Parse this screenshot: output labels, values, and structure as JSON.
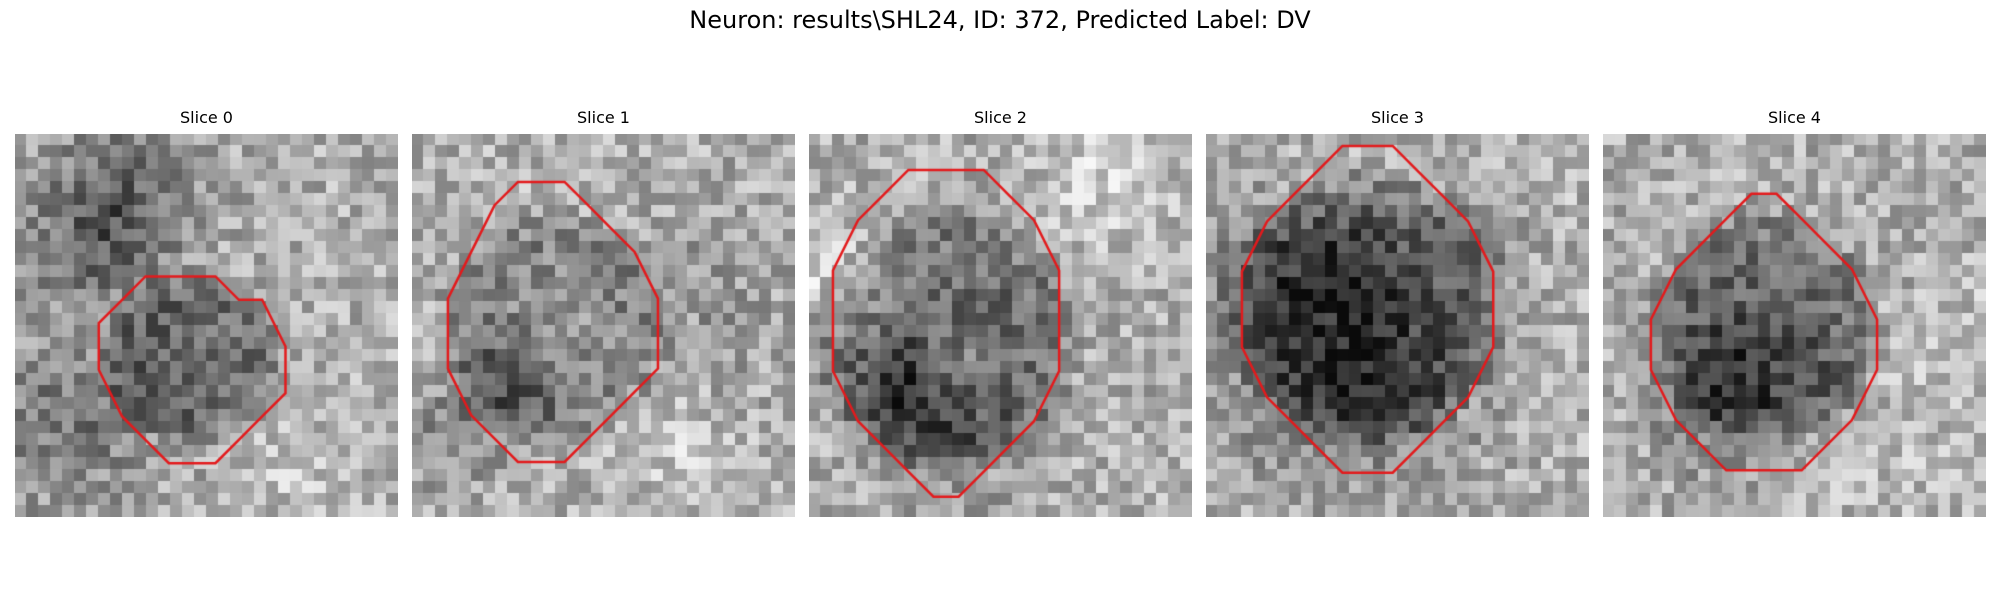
{
  "figure": {
    "title": "Neuron: results\\SHL24, ID: 372, Predicted Label: DV",
    "contour_color": "#e31a1c",
    "colormap": "gray",
    "panels": [
      {
        "title": "Slice 0",
        "seed": 11,
        "contour": [
          [
            4,
            2
          ],
          [
            5,
            2
          ],
          [
            6,
            3
          ],
          [
            7,
            3
          ],
          [
            8,
            5
          ],
          [
            8,
            7
          ],
          [
            7,
            8
          ],
          [
            6,
            9
          ],
          [
            5,
            10
          ],
          [
            3,
            10
          ],
          [
            2,
            9
          ],
          [
            1,
            8
          ],
          [
            0,
            6
          ],
          [
            0,
            4
          ],
          [
            1,
            3
          ],
          [
            2,
            2
          ],
          [
            3,
            2
          ]
        ]
      },
      {
        "title": "Slice 1",
        "seed": 23,
        "contour": [
          [
            3,
            0
          ],
          [
            5,
            0
          ],
          [
            6,
            1
          ],
          [
            7,
            2
          ],
          [
            8,
            3
          ],
          [
            9,
            5
          ],
          [
            9,
            8
          ],
          [
            8,
            9
          ],
          [
            7,
            10
          ],
          [
            6,
            11
          ],
          [
            5,
            12
          ],
          [
            3,
            12
          ],
          [
            2,
            11
          ],
          [
            1,
            10
          ],
          [
            0,
            8
          ],
          [
            0,
            5
          ],
          [
            1,
            3
          ],
          [
            2,
            1
          ]
        ]
      },
      {
        "title": "Slice 2",
        "seed": 37,
        "contour": [
          [
            3,
            0
          ],
          [
            6,
            0
          ],
          [
            7,
            1
          ],
          [
            8,
            2
          ],
          [
            9,
            4
          ],
          [
            9,
            8
          ],
          [
            8,
            10
          ],
          [
            7,
            11
          ],
          [
            6,
            12
          ],
          [
            5,
            13
          ],
          [
            4,
            13
          ],
          [
            3,
            12
          ],
          [
            2,
            11
          ],
          [
            1,
            10
          ],
          [
            0,
            8
          ],
          [
            0,
            4
          ],
          [
            1,
            2
          ],
          [
            2,
            1
          ]
        ]
      },
      {
        "title": "Slice 3",
        "seed": 53,
        "contour": [
          [
            4,
            0
          ],
          [
            6,
            0
          ],
          [
            7,
            1
          ],
          [
            8,
            2
          ],
          [
            9,
            3
          ],
          [
            10,
            5
          ],
          [
            10,
            8
          ],
          [
            9,
            10
          ],
          [
            8,
            11
          ],
          [
            7,
            12
          ],
          [
            6,
            13
          ],
          [
            4,
            13
          ],
          [
            3,
            12
          ],
          [
            2,
            11
          ],
          [
            1,
            10
          ],
          [
            0,
            8
          ],
          [
            0,
            5
          ],
          [
            1,
            3
          ],
          [
            2,
            2
          ],
          [
            3,
            1
          ]
        ]
      },
      {
        "title": "Slice 4",
        "seed": 71,
        "contour": [
          [
            4,
            0
          ],
          [
            5,
            0
          ],
          [
            6,
            1
          ],
          [
            7,
            2
          ],
          [
            8,
            3
          ],
          [
            9,
            5
          ],
          [
            9,
            7
          ],
          [
            8,
            9
          ],
          [
            7,
            10
          ],
          [
            6,
            11
          ],
          [
            3,
            11
          ],
          [
            2,
            10
          ],
          [
            1,
            9
          ],
          [
            0,
            7
          ],
          [
            0,
            5
          ],
          [
            1,
            3
          ],
          [
            2,
            2
          ],
          [
            3,
            1
          ]
        ]
      }
    ]
  }
}
